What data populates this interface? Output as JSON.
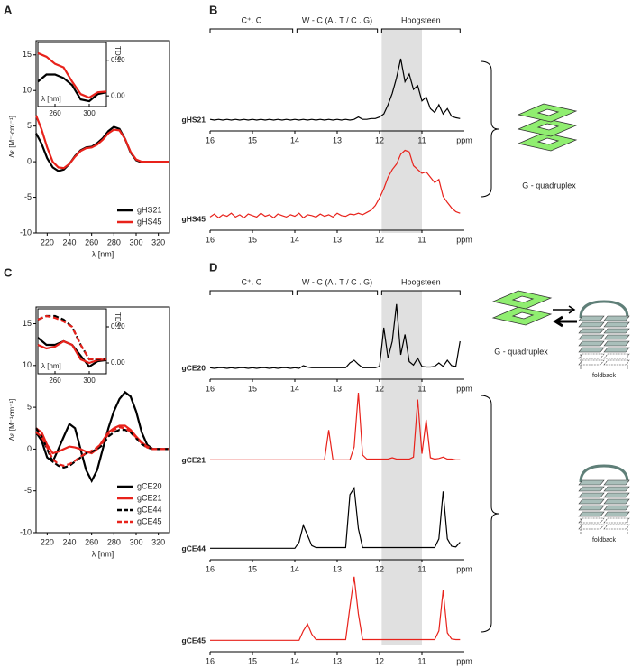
{
  "chart_data": [
    {
      "panel": "A",
      "type": "line",
      "xlabel": "λ [nm]",
      "ylabel": "Δε [M⁻¹cm⁻¹]",
      "x": [
        210,
        215,
        220,
        225,
        230,
        235,
        240,
        245,
        250,
        255,
        260,
        265,
        270,
        275,
        280,
        285,
        290,
        295,
        300,
        305,
        310,
        315,
        320,
        325,
        330
      ],
      "xlim": [
        210,
        330
      ],
      "ylim": [
        -10,
        17
      ],
      "xticks": [
        220,
        240,
        260,
        280,
        300,
        320
      ],
      "yticks": [
        -10,
        -5,
        0,
        5,
        10,
        15
      ],
      "legend": "lower right",
      "series": [
        {
          "name": "gHS21",
          "color": "#000000",
          "values": [
            4,
            2.5,
            0.5,
            -0.8,
            -1.3,
            -1.1,
            -0.3,
            0.8,
            1.6,
            2,
            2.1,
            2.6,
            3.3,
            4.3,
            4.9,
            4.6,
            3.2,
            1.3,
            0.2,
            -0.1,
            0,
            0,
            0,
            0,
            0
          ]
        },
        {
          "name": "gHS45",
          "color": "#e8221b",
          "values": [
            6.5,
            4.5,
            2,
            0,
            -0.8,
            -0.9,
            -0.3,
            0.7,
            1.5,
            1.9,
            2,
            2.4,
            3.1,
            4,
            4.5,
            4.4,
            3.2,
            1.4,
            0.3,
            0,
            0,
            0,
            0,
            0,
            0
          ]
        }
      ],
      "inset": {
        "type": "line",
        "xlabel": "λ [nm]",
        "ylabel": "TDS",
        "x": [
          240,
          250,
          260,
          270,
          280,
          290,
          300,
          310,
          320
        ],
        "xlim": [
          240,
          320
        ],
        "ylim": [
          -0.03,
          0.15
        ],
        "xticks": [
          260,
          300
        ],
        "yticks": [
          {
            "value": 0,
            "label": "0.00"
          },
          {
            "value": 0.1,
            "label": "0.10"
          }
        ],
        "series": [
          {
            "color": "#000000",
            "values": [
              0.04,
              0.06,
              0.06,
              0.05,
              0.03,
              -0.01,
              -0.015,
              0.005,
              0.01
            ]
          },
          {
            "color": "#e8221b",
            "values": [
              0.12,
              0.11,
              0.09,
              0.08,
              0.04,
              0.005,
              -0.005,
              0.01,
              0.012
            ]
          }
        ]
      }
    },
    {
      "panel": "B",
      "type": "spectrum",
      "xlabel": "ppm",
      "x": [
        16,
        15.9,
        15.8,
        15.7,
        15.6,
        15.5,
        15.4,
        15.3,
        15.2,
        15.1,
        15,
        14.9,
        14.8,
        14.7,
        14.6,
        14.5,
        14.4,
        14.3,
        14.2,
        14.1,
        14,
        13.9,
        13.8,
        13.7,
        13.6,
        13.5,
        13.4,
        13.3,
        13.2,
        13.1,
        13,
        12.9,
        12.8,
        12.7,
        12.6,
        12.5,
        12.4,
        12.3,
        12.2,
        12.1,
        12,
        11.9,
        11.8,
        11.7,
        11.6,
        11.5,
        11.4,
        11.3,
        11.2,
        11.1,
        11,
        10.9,
        10.8,
        10.7,
        10.6,
        10.5,
        10.4,
        10.3,
        10.2,
        10.1
      ],
      "xlim": [
        16,
        10
      ],
      "xticks": [
        16,
        15,
        14,
        13,
        12,
        11
      ],
      "ylim": [
        0,
        100
      ],
      "regions": [
        {
          "label": "C⁺. C",
          "xlim": [
            16,
            14.05
          ]
        },
        {
          "label": "W - C (A . T / C . G)",
          "xlim": [
            13.95,
            12.05
          ]
        },
        {
          "label": "Hoogsteen",
          "xlim": [
            11.95,
            10.1
          ]
        }
      ],
      "shade": [
        11.95,
        11
      ],
      "spectra": [
        {
          "name": "gHS21",
          "color": "#000000",
          "x_axis": true,
          "values": [
            1,
            0,
            1,
            0,
            1,
            0,
            1,
            0,
            1,
            0,
            1,
            0,
            1,
            0,
            1,
            0,
            1,
            0,
            1,
            0,
            1,
            0,
            1,
            0,
            1,
            0,
            1,
            0,
            1,
            0,
            1,
            0,
            1,
            0,
            1,
            4,
            1,
            1,
            2,
            2,
            4,
            8,
            20,
            35,
            55,
            80,
            50,
            60,
            40,
            45,
            25,
            30,
            15,
            10,
            20,
            8,
            15,
            5,
            3,
            2
          ]
        },
        {
          "name": "gHS45",
          "color": "#e8221b",
          "x_axis": true,
          "values": [
            3,
            7,
            2,
            6,
            4,
            8,
            3,
            6,
            2,
            7,
            5,
            3,
            8,
            4,
            6,
            2,
            7,
            5,
            3,
            6,
            4,
            8,
            2,
            6,
            5,
            3,
            7,
            4,
            6,
            3,
            8,
            5,
            4,
            7,
            6,
            8,
            6,
            9,
            12,
            18,
            28,
            40,
            55,
            65,
            72,
            85,
            90,
            88,
            70,
            65,
            60,
            62,
            55,
            48,
            52,
            30,
            22,
            15,
            10,
            8
          ]
        }
      ]
    },
    {
      "panel": "C",
      "type": "line",
      "xlabel": "λ [nm]",
      "ylabel": "Δε [M⁻¹cm⁻¹]",
      "x": [
        210,
        215,
        220,
        225,
        230,
        235,
        240,
        245,
        250,
        255,
        260,
        265,
        270,
        275,
        280,
        285,
        290,
        295,
        300,
        305,
        310,
        315,
        320,
        325,
        330
      ],
      "xlim": [
        210,
        330
      ],
      "ylim": [
        -10,
        17
      ],
      "xticks": [
        220,
        240,
        260,
        280,
        300,
        320
      ],
      "yticks": [
        -10,
        -5,
        0,
        5,
        10,
        15
      ],
      "legend": "lower right",
      "series": [
        {
          "name": "gCE20",
          "color": "#000000",
          "dash": false,
          "values": [
            2,
            1,
            -1,
            -1.5,
            0,
            1.5,
            3,
            2.5,
            0,
            -2.5,
            -3.8,
            -2.5,
            0,
            2.5,
            4.5,
            6,
            6.8,
            6.3,
            4.5,
            2,
            0.5,
            0,
            0,
            0,
            0
          ]
        },
        {
          "name": "gCE21",
          "color": "#e8221b",
          "dash": false,
          "values": [
            2.5,
            2,
            0.5,
            -0.5,
            -0.3,
            0,
            0.3,
            0.2,
            0,
            -0.3,
            -0.5,
            0,
            1,
            2,
            2.5,
            2.8,
            2.8,
            2.3,
            1.5,
            0.8,
            0.3,
            0,
            0,
            0,
            0
          ]
        },
        {
          "name": "gCE44",
          "color": "#000000",
          "dash": true,
          "values": [
            2.5,
            1.5,
            0,
            -1.5,
            -2,
            -2.2,
            -2,
            -1.5,
            -1,
            -0.5,
            -0.3,
            0,
            0.5,
            1.5,
            2,
            2.3,
            2.3,
            2,
            1.3,
            0.6,
            0.2,
            0,
            0,
            0,
            0
          ]
        },
        {
          "name": "gCE45",
          "color": "#e8221b",
          "dash": true,
          "values": [
            2,
            1.5,
            0.2,
            -1.2,
            -1.8,
            -2,
            -1.8,
            -1.4,
            -0.9,
            -0.5,
            -0.2,
            0.2,
            0.8,
            1.8,
            2.3,
            2.6,
            2.5,
            2.1,
            1.4,
            0.7,
            0.2,
            0,
            0,
            0,
            0
          ]
        }
      ],
      "inset": {
        "type": "line",
        "xlabel": "λ [nm]",
        "ylabel": "TDS",
        "x": [
          240,
          250,
          260,
          270,
          280,
          290,
          300,
          310,
          320
        ],
        "xlim": [
          240,
          320
        ],
        "ylim": [
          -0.03,
          0.15
        ],
        "xticks": [
          260,
          300
        ],
        "yticks": [
          {
            "value": 0,
            "label": "0.00"
          },
          {
            "value": 0.1,
            "label": "0.10"
          }
        ],
        "series": [
          {
            "color": "#000000",
            "dash": false,
            "values": [
              0.07,
              0.05,
              0.05,
              0.06,
              0.05,
              0.02,
              -0.01,
              0.005,
              0.008
            ]
          },
          {
            "color": "#e8221b",
            "dash": false,
            "values": [
              0.05,
              0.04,
              0.045,
              0.06,
              0.05,
              0.01,
              0,
              0.008,
              0.01
            ]
          },
          {
            "color": "#000000",
            "dash": true,
            "values": [
              0.12,
              0.13,
              0.13,
              0.12,
              0.1,
              0.05,
              0.01,
              0.01,
              0.01
            ]
          },
          {
            "color": "#e8221b",
            "dash": true,
            "values": [
              0.12,
              0.13,
              0.125,
              0.115,
              0.1,
              0.05,
              0.01,
              0.012,
              0.01
            ]
          }
        ]
      }
    },
    {
      "panel": "D",
      "type": "spectrum",
      "xlabel": "ppm",
      "x": [
        16,
        15.9,
        15.8,
        15.7,
        15.6,
        15.5,
        15.4,
        15.3,
        15.2,
        15.1,
        15,
        14.9,
        14.8,
        14.7,
        14.6,
        14.5,
        14.4,
        14.3,
        14.2,
        14.1,
        14,
        13.9,
        13.8,
        13.7,
        13.6,
        13.5,
        13.4,
        13.3,
        13.2,
        13.1,
        13,
        12.9,
        12.8,
        12.7,
        12.6,
        12.5,
        12.4,
        12.3,
        12.2,
        12.1,
        12,
        11.9,
        11.8,
        11.7,
        11.6,
        11.5,
        11.4,
        11.3,
        11.2,
        11.1,
        11,
        10.9,
        10.8,
        10.7,
        10.6,
        10.5,
        10.4,
        10.3,
        10.2,
        10.1
      ],
      "xlim": [
        16,
        10
      ],
      "xticks": [
        16,
        15,
        14,
        13,
        12,
        11
      ],
      "ylim": [
        0,
        100
      ],
      "regions": [
        {
          "label": "C⁺. C",
          "xlim": [
            16,
            14.05
          ]
        },
        {
          "label": "W - C (A . T / C . G)",
          "xlim": [
            13.95,
            12.05
          ]
        },
        {
          "label": "Hoogsteen",
          "xlim": [
            11.95,
            10.1
          ]
        }
      ],
      "shade": [
        11.95,
        11
      ],
      "spectra": [
        {
          "name": "gCE20",
          "color": "#000000",
          "x_axis": true,
          "values": [
            1,
            0,
            1,
            1,
            0,
            1,
            0,
            1,
            1,
            0,
            1,
            0,
            1,
            1,
            0,
            1,
            0,
            1,
            1,
            0,
            1,
            0,
            4,
            2,
            1,
            1,
            1,
            1,
            1,
            1,
            1,
            1,
            1,
            8,
            12,
            6,
            1,
            1,
            1,
            1,
            3,
            60,
            15,
            40,
            95,
            20,
            50,
            10,
            5,
            15,
            3,
            2,
            2,
            3,
            8,
            3,
            12,
            4,
            3,
            40
          ]
        },
        {
          "name": "gCE21",
          "color": "#e8221b",
          "x_axis": false,
          "values": [
            1,
            1,
            1,
            1,
            1,
            1,
            1,
            1,
            1,
            1,
            1,
            1,
            1,
            1,
            1,
            1,
            1,
            1,
            1,
            1,
            1,
            1,
            1,
            1,
            1,
            1,
            1,
            1,
            45,
            1,
            1,
            1,
            1,
            1,
            20,
            100,
            8,
            2,
            2,
            2,
            2,
            2,
            2,
            4,
            2,
            2,
            2,
            2,
            5,
            90,
            10,
            60,
            4,
            2,
            3,
            5,
            2,
            2,
            1,
            1
          ]
        },
        {
          "name": "gCE44",
          "color": "#000000",
          "x_axis": true,
          "values": [
            1,
            1,
            1,
            1,
            1,
            1,
            1,
            1,
            1,
            1,
            1,
            1,
            1,
            1,
            1,
            1,
            1,
            1,
            1,
            1,
            1,
            10,
            35,
            20,
            5,
            2,
            2,
            2,
            2,
            2,
            2,
            2,
            2,
            80,
            90,
            30,
            2,
            2,
            2,
            2,
            2,
            2,
            2,
            2,
            2,
            2,
            2,
            2,
            2,
            2,
            2,
            2,
            2,
            2,
            15,
            85,
            15,
            4,
            3,
            10
          ]
        },
        {
          "name": "gCE45",
          "color": "#e8221b",
          "x_axis": true,
          "values": [
            1,
            1,
            1,
            1,
            1,
            1,
            1,
            1,
            1,
            1,
            1,
            1,
            1,
            1,
            1,
            1,
            1,
            1,
            1,
            1,
            1,
            1,
            15,
            25,
            10,
            2,
            2,
            2,
            2,
            2,
            2,
            2,
            2,
            50,
            95,
            40,
            2,
            2,
            2,
            2,
            2,
            2,
            2,
            2,
            2,
            2,
            2,
            2,
            2,
            2,
            2,
            2,
            2,
            2,
            15,
            75,
            12,
            3,
            2,
            2
          ]
        }
      ]
    }
  ],
  "diagram_labels": [
    "G - quadruplex",
    "G - quadruplex",
    "foldback",
    "foldback"
  ]
}
